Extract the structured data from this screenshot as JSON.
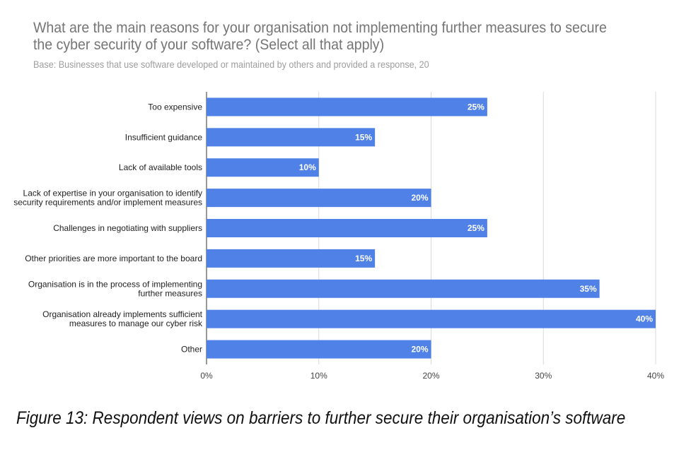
{
  "chart_data": {
    "type": "bar",
    "orientation": "horizontal",
    "title": "What are the main reasons for your organisation not implementing further measures to secure the cyber security of your software? (Select all that apply)",
    "subtitle": "Base: Businesses that use software developed or maintained by others and provided a response, 20",
    "categories": [
      [
        "Too expensive"
      ],
      [
        "Insufficient guidance"
      ],
      [
        "Lack of available tools"
      ],
      [
        "Lack of expertise in your organisation to identify",
        "security requirements and/or implement measures"
      ],
      [
        "Challenges in negotiating with suppliers"
      ],
      [
        "Other priorities are more important to the board"
      ],
      [
        "Organisation is in the process of implementing",
        "further measures"
      ],
      [
        "Organisation already implements sufficient",
        "measures to manage our cyber risk"
      ],
      [
        "Other"
      ]
    ],
    "values": [
      25,
      15,
      10,
      20,
      25,
      15,
      35,
      40,
      20
    ],
    "data_labels": [
      "25%",
      "15%",
      "10%",
      "20%",
      "25%",
      "15%",
      "35%",
      "40%",
      "20%"
    ],
    "xlim": [
      0,
      40
    ],
    "xticks": [
      0,
      10,
      20,
      30,
      40
    ],
    "xtick_labels": [
      "0%",
      "10%",
      "20%",
      "30%",
      "40%"
    ],
    "grid": true,
    "legend": "none",
    "bar_color": "#4f81e6"
  },
  "caption": "Figure 13: Respondent views on barriers to further secure their organisation’s software"
}
